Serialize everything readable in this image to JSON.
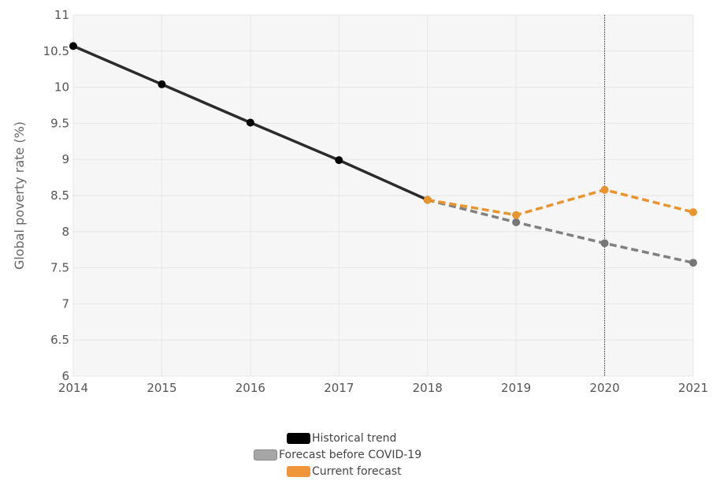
{
  "chart_data": {
    "type": "line",
    "ylabel": "Global poverty rate (%)",
    "xlabel": "",
    "x_ticks": [
      "2014",
      "2015",
      "2016",
      "2017",
      "2018",
      "2019",
      "2020",
      "2021"
    ],
    "y_ticks": [
      "6",
      "6.5",
      "7",
      "7.5",
      "8",
      "8.5",
      "9",
      "9.5",
      "10",
      "10.5",
      "11"
    ],
    "xlim": [
      2014,
      2021
    ],
    "ylim": [
      6,
      11
    ],
    "grid": true,
    "vertical_marker_x": 2020,
    "series": [
      {
        "name": "Historical trend",
        "color": "#2b2b2b",
        "marker_color": "#000000",
        "dash": false,
        "x": [
          2014,
          2015,
          2016,
          2017,
          2018
        ],
        "y": [
          10.57,
          10.04,
          9.51,
          8.99,
          8.44
        ]
      },
      {
        "name": "Forecast before COVID-19",
        "color": "#808080",
        "marker_color": "#777777",
        "dash": true,
        "x": [
          2018,
          2019,
          2020,
          2021
        ],
        "y": [
          8.44,
          8.13,
          7.84,
          7.57
        ]
      },
      {
        "name": "Current forecast",
        "color": "#e8942f",
        "marker_color": "#e8942f",
        "dash": true,
        "x": [
          2018,
          2019,
          2020,
          2021
        ],
        "y": [
          8.44,
          8.23,
          8.58,
          8.27
        ]
      }
    ],
    "legend": [
      {
        "label": "Historical trend",
        "color": "#000000"
      },
      {
        "label": "Forecast before COVID-19",
        "color": "#a6a6a6"
      },
      {
        "label": "Current forecast",
        "color": "#f0963a"
      }
    ]
  }
}
